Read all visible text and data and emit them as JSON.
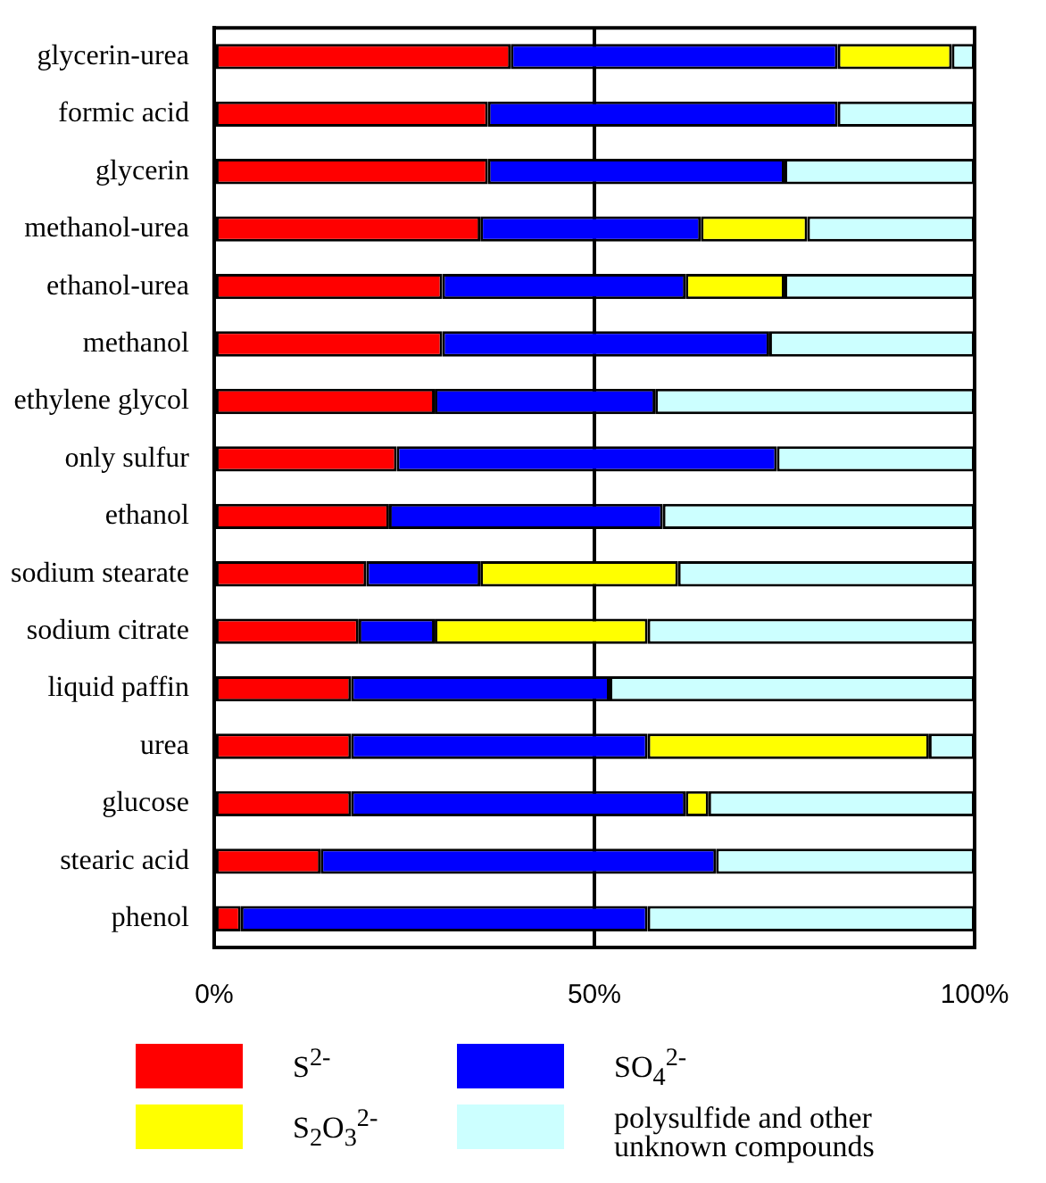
{
  "chart_data": {
    "type": "bar",
    "orientation": "horizontal",
    "stacked": true,
    "categories": [
      "glycerin-urea",
      "formic acid",
      "glycerin",
      "methanol-urea",
      "ethanol-urea",
      "methanol",
      "ethylene glycol",
      "only sulfur",
      "ethanol",
      "sodium stearate",
      "sodium citrate",
      "liquid paffin",
      "urea",
      "glucose",
      "stearic acid",
      "phenol"
    ],
    "series": [
      {
        "name": "S$^{2-}$",
        "color": "#ff0000",
        "values": [
          39,
          36,
          36,
          35,
          30,
          30,
          29,
          24,
          23,
          20,
          19,
          18,
          18,
          18,
          14,
          3.5
        ]
      },
      {
        "name": "SO$_{4}$$^{2-}$",
        "color": "#0000ff",
        "values": [
          43,
          46,
          39,
          29,
          32,
          43,
          29,
          50,
          36,
          15,
          10,
          34,
          39,
          44,
          52,
          53.5
        ]
      },
      {
        "name": "S$_{2}$O$_{3}$$^{2-}$",
        "color": "#ffff00",
        "values": [
          15,
          0,
          0,
          14,
          13,
          0,
          0,
          0,
          0,
          26,
          28,
          0,
          37,
          3,
          0,
          0
        ]
      },
      {
        "name": "polysulfide and other unknown compounds",
        "color": "#ccffff",
        "values": [
          3,
          18,
          25,
          22,
          25,
          27,
          42,
          26,
          41,
          39,
          43,
          48,
          6,
          35,
          34,
          43
        ]
      }
    ],
    "xlim": [
      0,
      100
    ],
    "xticks": [
      {
        "value": 0,
        "label": "0%"
      },
      {
        "value": 50,
        "label": "50%"
      },
      {
        "value": 100,
        "label": "100%"
      }
    ],
    "grid": "x",
    "legend": "bottom"
  }
}
